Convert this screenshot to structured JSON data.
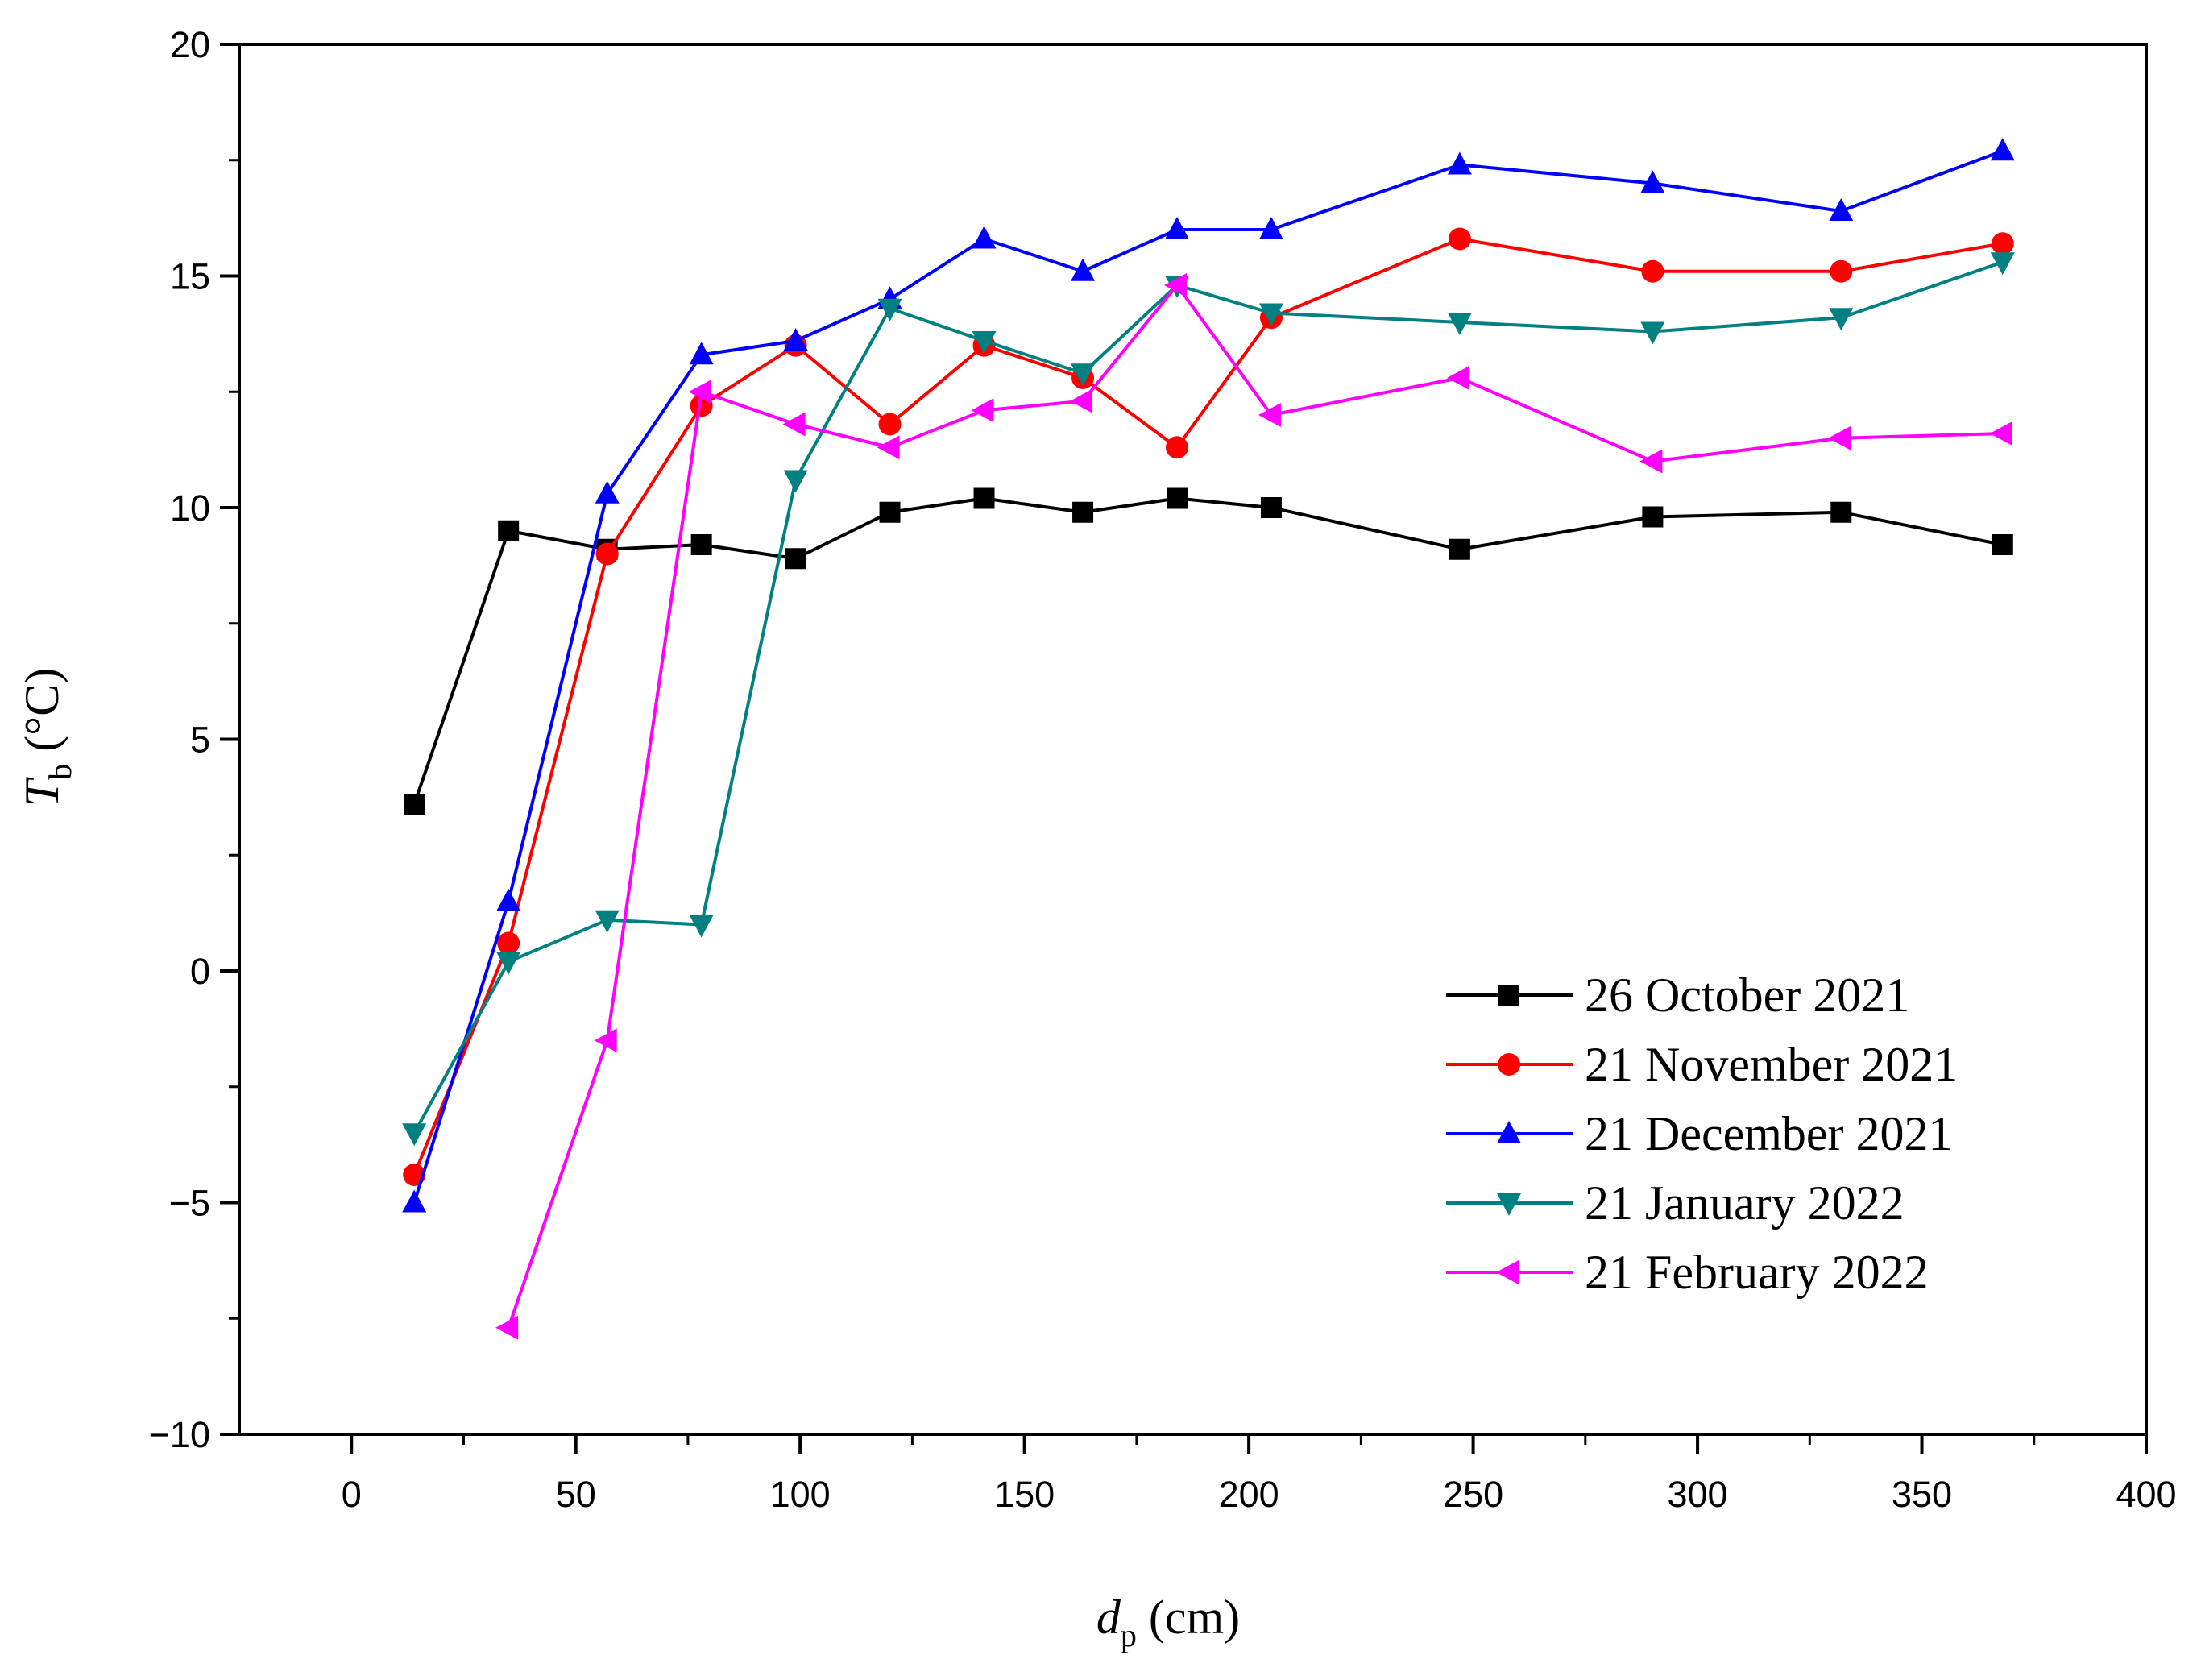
{
  "chart_data": {
    "type": "line",
    "title": "",
    "xlabel": {
      "symbol": "d",
      "subscript": "p",
      "unit": " (cm)"
    },
    "ylabel": {
      "symbol": "T",
      "subscript": "b",
      "unit": " (°C)"
    },
    "xlim": [
      -25,
      400
    ],
    "ylim": [
      -10,
      20
    ],
    "xticks": [
      0,
      50,
      100,
      150,
      200,
      250,
      300,
      350,
      400
    ],
    "yticks": [
      -10,
      -5,
      0,
      5,
      10,
      15,
      20
    ],
    "xtick_labels": [
      "0",
      "50",
      "100",
      "150",
      "200",
      "250",
      "300",
      "350",
      "400"
    ],
    "ytick_labels": [
      "−10",
      "−5",
      "0",
      "5",
      "10",
      "15",
      "20"
    ],
    "grid": false,
    "legend_position": "bottom-right",
    "x": [
      14,
      35,
      57,
      78,
      99,
      120,
      141,
      163,
      184,
      205,
      247,
      290,
      332,
      368
    ],
    "series": [
      {
        "name": "26 October 2021",
        "color": "#000000",
        "marker": "square",
        "values": [
          3.6,
          9.5,
          9.1,
          9.2,
          8.9,
          9.9,
          10.2,
          9.9,
          10.2,
          10.0,
          9.1,
          9.8,
          9.9,
          9.2
        ]
      },
      {
        "name": "21 November 2021",
        "color": "#ff0000",
        "marker": "circle",
        "values": [
          -4.4,
          0.6,
          9.0,
          12.2,
          13.5,
          11.8,
          13.5,
          12.8,
          11.3,
          14.1,
          15.8,
          15.1,
          15.1,
          15.7
        ]
      },
      {
        "name": "21 December 2021",
        "color": "#0000ff",
        "marker": "triangle-up",
        "values": [
          -5.0,
          1.5,
          10.3,
          13.3,
          13.6,
          14.5,
          15.8,
          15.1,
          16.0,
          16.0,
          17.4,
          17.0,
          16.4,
          17.7
        ]
      },
      {
        "name": "21 January 2022",
        "color": "#008080",
        "marker": "triangle-down",
        "values": [
          -3.5,
          0.2,
          1.1,
          1.0,
          10.6,
          14.3,
          13.6,
          12.9,
          14.8,
          14.2,
          14.0,
          13.8,
          14.1,
          15.3
        ]
      },
      {
        "name": "21 February 2022",
        "color": "#ff00ff",
        "marker": "triangle-left",
        "values": [
          null,
          -7.7,
          -1.5,
          12.5,
          11.8,
          11.3,
          12.1,
          12.3,
          14.8,
          12.0,
          12.8,
          11.0,
          11.5,
          11.6
        ]
      }
    ]
  }
}
